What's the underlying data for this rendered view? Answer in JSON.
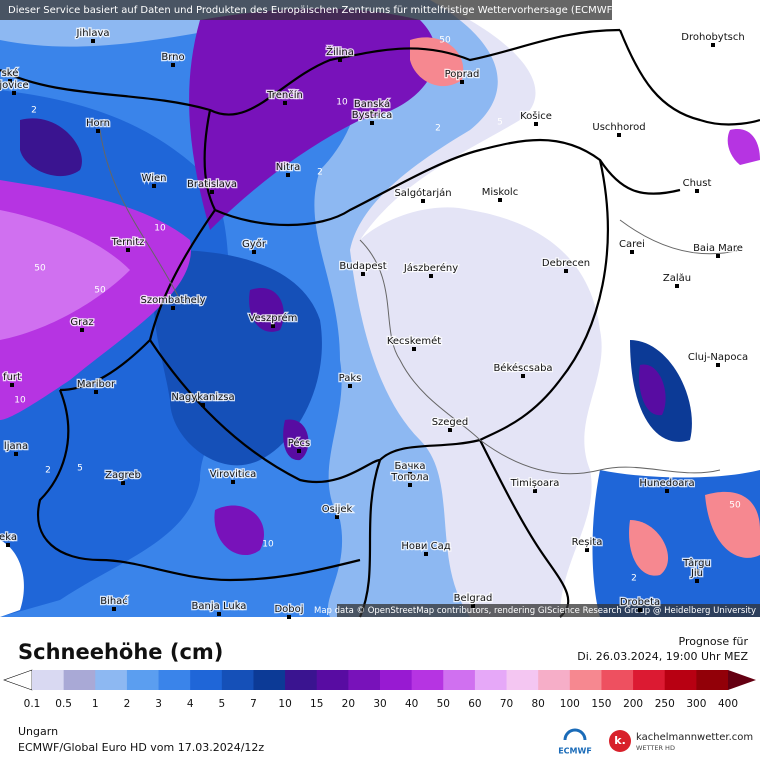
{
  "header": {
    "notice": "Dieser Service basiert auf Daten und Produkten des Europäischen Zentrums für mittelfristige Wettervorhersage (ECMWF)"
  },
  "map": {
    "cities": [
      "Jihlava",
      "Brno",
      "Žilina",
      "Poprad",
      "Drohobytsch",
      "Trenčín",
      "Banská",
      "Bystrica",
      "Košice",
      "Uschhorod",
      "Horn",
      "Nitra",
      "Wien",
      "Bratislava",
      "Salgótarján",
      "Miskolc",
      "Chust",
      "Ternitz",
      "Győr",
      "Carei",
      "Baia Mare",
      "Budapest",
      "Jászberény",
      "Debrecen",
      "Szombathely",
      "Zalău",
      "Graz",
      "Veszprém",
      "Kecskemét",
      "Cluj-Napoca",
      "Maribor",
      "Paks",
      "Békéscsaba",
      "Nagykanizsa",
      "Szeged",
      "Pécs",
      "Zagreb",
      "Virovitica",
      "Бачка",
      "Топола",
      "Timișoara",
      "Hunedoara",
      "Osijek",
      "Нови Сад",
      "Reșita",
      "Târgu",
      "Jiu",
      "Bihać",
      "Banja Luka",
      "Doboj",
      "Belgrad",
      "Drobeta",
      "ské",
      "jovice",
      "furt",
      "ljana",
      "eka"
    ],
    "contour_labels": [
      "2",
      "50",
      "10",
      "2",
      "5",
      "10",
      "2",
      "50",
      "10",
      "50",
      "2",
      "5",
      "10",
      "2",
      "2",
      "50"
    ],
    "attribution": "Map data © OpenStreetMap contributors, rendering GIScience Research Group @ Heidelberg University"
  },
  "legend": {
    "title": "Schneehöhe (cm)",
    "ticks": [
      "0.1",
      "0.5",
      "1",
      "2",
      "3",
      "4",
      "5",
      "7",
      "10",
      "15",
      "20",
      "30",
      "40",
      "50",
      "60",
      "70",
      "80",
      "100",
      "150",
      "200",
      "250",
      "300",
      "400"
    ],
    "colors": [
      "#d9d9f2",
      "#a9a9d6",
      "#8db8f2",
      "#5b9ef0",
      "#3a84ea",
      "#1f66d8",
      "#1550b8",
      "#0c3a96",
      "#3a1490",
      "#580ca2",
      "#7812ba",
      "#981ad2",
      "#b634e2",
      "#d070f0",
      "#e6a8f8",
      "#f4c6f2",
      "#f6aec8",
      "#f68890",
      "#ee5060",
      "#dc1a32",
      "#b80012",
      "#920008",
      "#640012"
    ]
  },
  "forecast": {
    "label": "Prognose für",
    "time": "Di. 26.03.2024, 19:00 Uhr MEZ"
  },
  "footer": {
    "region": "Ungarn",
    "model": "ECMWF/Global Euro HD vom  17.03.2024/12z",
    "ecmwf": "ECMWF",
    "brand": "kachelmannwetter.com",
    "brand_sub": "WETTER HD",
    "logo": "k."
  }
}
